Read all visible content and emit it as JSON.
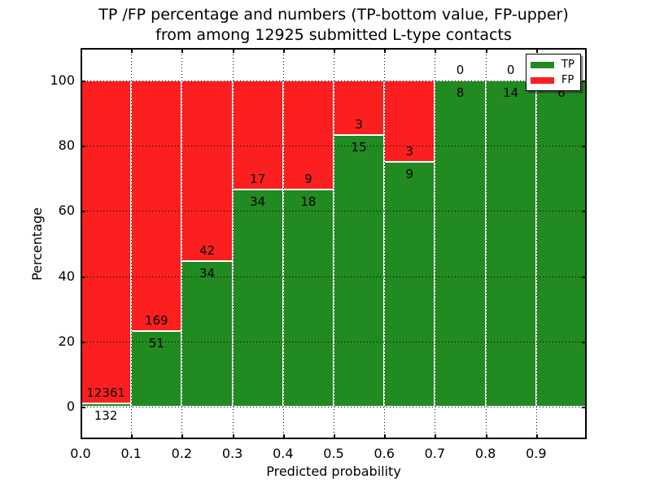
{
  "figure": {
    "background": "#ffffff",
    "title_line1": "TP /FP percentage and numbers (TP-bottom value, FP-upper)",
    "title_line2": "from among 12925 submitted L-type contacts"
  },
  "chart_data": {
    "type": "bar",
    "subtype": "stacked-percentage",
    "title": "TP /FP percentage and numbers (TP-bottom value, FP-upper)\nfrom among 12925 submitted L-type contacts",
    "xlabel": "Predicted probability",
    "ylabel": "Percentage",
    "xlim": [
      0.0,
      1.0
    ],
    "ylim": [
      -10,
      110
    ],
    "x_ticks": [
      "0.0",
      "0.1",
      "0.2",
      "0.3",
      "0.4",
      "0.5",
      "0.6",
      "0.7",
      "0.8",
      "0.9"
    ],
    "y_ticks": [
      0,
      20,
      40,
      60,
      80,
      100
    ],
    "grid": true,
    "total_submitted": 12925,
    "legend": {
      "position": "upper-right",
      "entries": [
        {
          "label": "TP",
          "color": "#218a21"
        },
        {
          "label": "FP",
          "color": "#fb1f1f"
        }
      ]
    },
    "bins": [
      {
        "x_start": 0.0,
        "x_end": 0.1,
        "tp": 132,
        "fp": 12361,
        "tp_pct": 1.06,
        "fp_pct": 98.94
      },
      {
        "x_start": 0.1,
        "x_end": 0.2,
        "tp": 51,
        "fp": 169,
        "tp_pct": 23.18,
        "fp_pct": 76.82
      },
      {
        "x_start": 0.2,
        "x_end": 0.3,
        "tp": 34,
        "fp": 42,
        "tp_pct": 44.74,
        "fp_pct": 55.26
      },
      {
        "x_start": 0.3,
        "x_end": 0.4,
        "tp": 34,
        "fp": 17,
        "tp_pct": 66.67,
        "fp_pct": 33.33
      },
      {
        "x_start": 0.4,
        "x_end": 0.5,
        "tp": 18,
        "fp": 9,
        "tp_pct": 66.67,
        "fp_pct": 33.33
      },
      {
        "x_start": 0.5,
        "x_end": 0.6,
        "tp": 15,
        "fp": 3,
        "tp_pct": 83.33,
        "fp_pct": 16.67
      },
      {
        "x_start": 0.6,
        "x_end": 0.7,
        "tp": 9,
        "fp": 3,
        "tp_pct": 75.0,
        "fp_pct": 25.0
      },
      {
        "x_start": 0.7,
        "x_end": 0.8,
        "tp": 8,
        "fp": 0,
        "tp_pct": 100.0,
        "fp_pct": 0.0
      },
      {
        "x_start": 0.8,
        "x_end": 0.9,
        "tp": 14,
        "fp": 0,
        "tp_pct": 100.0,
        "fp_pct": 0.0
      },
      {
        "x_start": 0.9,
        "x_end": 1.0,
        "tp": 6,
        "fp": 0,
        "tp_pct": 100.0,
        "fp_pct": 0.0
      }
    ]
  }
}
